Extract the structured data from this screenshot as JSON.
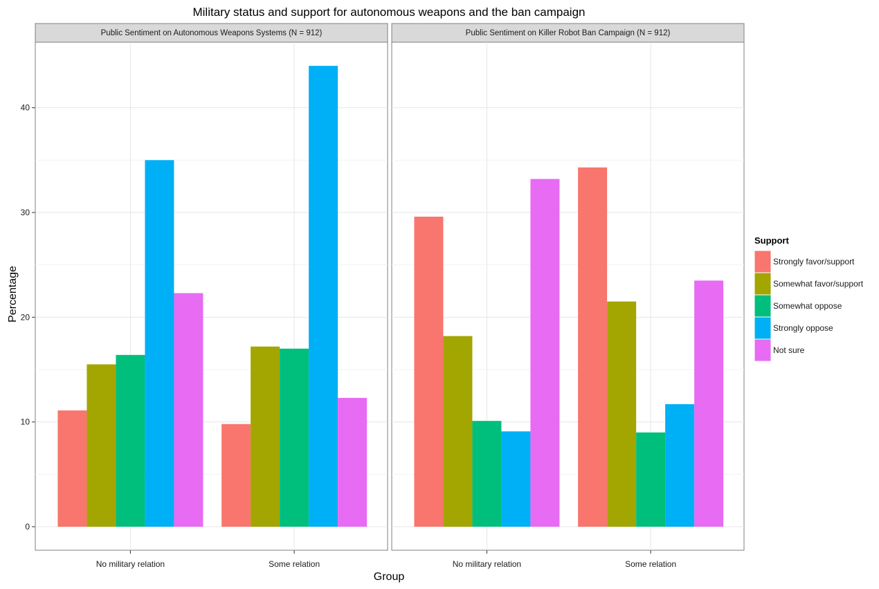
{
  "chart_data": {
    "type": "bar",
    "title": "Military status and support for autonomous weapons and the ban campaign",
    "xlabel": "Group",
    "ylabel": "Percentage",
    "ylim": [
      0,
      45
    ],
    "yticks": [
      0,
      10,
      20,
      30,
      40
    ],
    "grid": true,
    "legend": {
      "title": "Support",
      "position": "right"
    },
    "categories": [
      "No military relation",
      "Some relation"
    ],
    "series_styles": [
      {
        "name": "Strongly favor/support",
        "color": "#F8766D"
      },
      {
        "name": "Somewhat favor/support",
        "color": "#A3A500"
      },
      {
        "name": "Somewhat oppose",
        "color": "#00BF7D"
      },
      {
        "name": "Strongly oppose",
        "color": "#00B0F6"
      },
      {
        "name": "Not sure",
        "color": "#E76BF3"
      }
    ],
    "panels": [
      {
        "title": "Public Sentiment on Autonomous Weapons Systems (N = 912)",
        "series": [
          {
            "name": "Strongly favor/support",
            "values": [
              11.1,
              9.8
            ]
          },
          {
            "name": "Somewhat favor/support",
            "values": [
              15.5,
              17.2
            ]
          },
          {
            "name": "Somewhat oppose",
            "values": [
              16.4,
              17.0
            ]
          },
          {
            "name": "Strongly oppose",
            "values": [
              35.0,
              44.0
            ]
          },
          {
            "name": "Not sure",
            "values": [
              22.3,
              12.3
            ]
          }
        ]
      },
      {
        "title": "Public Sentiment on Killer Robot Ban Campaign (N = 912)",
        "series": [
          {
            "name": "Strongly favor/support",
            "values": [
              29.6,
              34.3
            ]
          },
          {
            "name": "Somewhat favor/support",
            "values": [
              18.2,
              21.5
            ]
          },
          {
            "name": "Somewhat oppose",
            "values": [
              10.1,
              9.0
            ]
          },
          {
            "name": "Strongly oppose",
            "values": [
              9.1,
              11.7
            ]
          },
          {
            "name": "Not sure",
            "values": [
              33.2,
              23.5
            ]
          }
        ]
      }
    ]
  }
}
